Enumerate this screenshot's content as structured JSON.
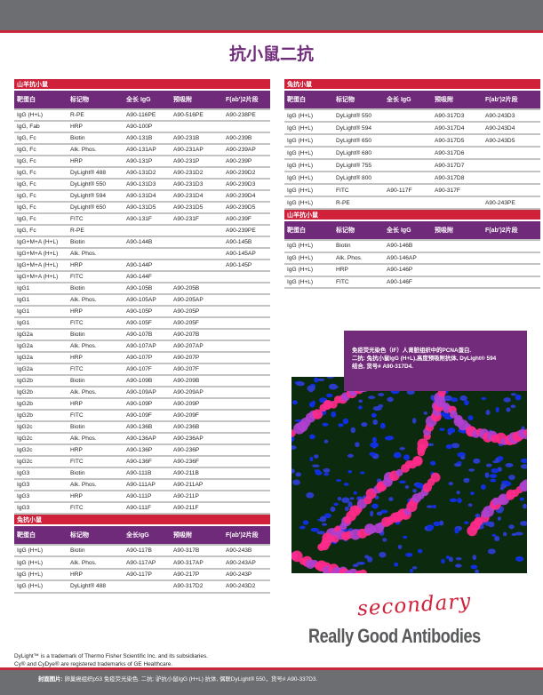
{
  "title": "抗小鼠二抗",
  "headers": [
    "靶蛋白",
    "标记物",
    "全长 IgG",
    "预吸附",
    "F(ab')2片段"
  ],
  "left": [
    {
      "section": "山羊抗小鼠",
      "rows": [
        [
          "IgG (H+L)",
          "R-PE",
          "A90-116PE",
          "A90-516PE",
          "A90-238PE"
        ],
        [
          "IgG, Fab",
          "HRP",
          "A90-100P",
          "",
          ""
        ],
        [
          "IgG, Fc",
          "Biotin",
          "A90-131B",
          "A90-231B",
          "A90-239B"
        ],
        [
          "IgG, Fc",
          "Alk. Phos.",
          "A90-131AP",
          "A90-231AP",
          "A90-239AP"
        ],
        [
          "IgG, Fc",
          "HRP",
          "A90-131P",
          "A90-231P",
          "A90-239P"
        ],
        [
          "IgG, Fc",
          "DyLight® 488",
          "A90-131D2",
          "A90-231D2",
          "A90-239D2"
        ],
        [
          "IgG, Fc",
          "DyLight® 550",
          "A90-131D3",
          "A90-231D3",
          "A90-239D3"
        ],
        [
          "IgG, Fc",
          "DyLight® 594",
          "A90-131D4",
          "A90-231D4",
          "A90-239D4"
        ],
        [
          "IgG, Fc",
          "DyLight® 650",
          "A90-131D5",
          "A90-231D5",
          "A90-239D5"
        ],
        [
          "IgG, Fc",
          "FITC",
          "A90-131F",
          "A90-231F",
          "A90-239F"
        ],
        [
          "IgG, Fc",
          "R-PE",
          "",
          "",
          "A90-239PE"
        ],
        [
          "IgG+M+A (H+L)",
          "Biotin",
          "A90-144B",
          "",
          "A90-145B"
        ],
        [
          "IgG+M+A (H+L)",
          "Alk. Phos.",
          "",
          "",
          "A90-145AP"
        ],
        [
          "IgG+M+A (H+L)",
          "HRP",
          "A90-144P",
          "",
          "A90-145P"
        ],
        [
          "IgG+M+A (H+L)",
          "FITC",
          "A90-144F",
          "",
          ""
        ],
        [
          "IgG1",
          "Biotin",
          "A90-105B",
          "A90-205B",
          ""
        ],
        [
          "IgG1",
          "Alk. Phos.",
          "A90-105AP",
          "A90-205AP",
          ""
        ],
        [
          "IgG1",
          "HRP",
          "A90-105P",
          "A90-205P",
          ""
        ],
        [
          "IgG1",
          "FITC",
          "A90-105F",
          "A90-205F",
          ""
        ],
        [
          "IgG2a",
          "Biotin",
          "A90-107B",
          "A90-207B",
          ""
        ],
        [
          "IgG2a",
          "Alk. Phos.",
          "A90-107AP",
          "A90-207AP",
          ""
        ],
        [
          "IgG2a",
          "HRP",
          "A90-107P",
          "A90-207P",
          ""
        ],
        [
          "IgG2a",
          "FITC",
          "A90-107F",
          "A90-207F",
          ""
        ],
        [
          "IgG2b",
          "Biotin",
          "A90-109B",
          "A90-209B",
          ""
        ],
        [
          "IgG2b",
          "Alk. Phos.",
          "A90-109AP",
          "A90-209AP",
          ""
        ],
        [
          "IgG2b",
          "HRP",
          "A90-109P",
          "A90-209P",
          ""
        ],
        [
          "IgG2b",
          "FITC",
          "A90-109F",
          "A90-209F",
          ""
        ],
        [
          "IgG2c",
          "Biotin",
          "A90-136B",
          "A90-236B",
          ""
        ],
        [
          "IgG2c",
          "Alk. Phos.",
          "A90-136AP",
          "A90-236AP",
          ""
        ],
        [
          "IgG2c",
          "HRP",
          "A90-136P",
          "A90-236P",
          ""
        ],
        [
          "IgG2c",
          "FITC",
          "A90-136F",
          "A90-236F",
          ""
        ],
        [
          "IgG3",
          "Biotin",
          "A90-111B",
          "A90-211B",
          ""
        ],
        [
          "IgG3",
          "Alk. Phos.",
          "A90-111AP",
          "A90-211AP",
          ""
        ],
        [
          "IgG3",
          "HRP",
          "A90-111P",
          "A90-211P",
          ""
        ],
        [
          "IgG3",
          "FITC",
          "A90-111F",
          "A90-211F",
          ""
        ]
      ]
    },
    {
      "section": "兔抗小鼠",
      "headers": [
        "靶蛋白",
        "标记物",
        "全长IgG",
        "预吸附",
        "F(ab')2片段"
      ],
      "rows": [
        [
          "IgG (H+L)",
          "Biotin",
          "A90-117B",
          "A90-317B",
          "A90-243B"
        ],
        [
          "IgG (H+L)",
          "Alk. Phos.",
          "A90-117AP",
          "A90-317AP",
          "A90-243AP"
        ],
        [
          "IgG (H+L)",
          "HRP",
          "A90-117P",
          "A90-217P",
          "A90-243P"
        ],
        [
          "IgG (H+L)",
          "DyLight® 488",
          "",
          "A90-317D2",
          "A90-243D2"
        ]
      ]
    }
  ],
  "right": [
    {
      "section": "兔抗小鼠",
      "rows": [
        [
          "IgG (H+L)",
          "DyLight® 550",
          "",
          "A90-317D3",
          "A90-243D3"
        ],
        [
          "IgG (H+L)",
          "DyLight® 594",
          "",
          "A90-317D4",
          "A90-243D4"
        ],
        [
          "IgG (H+L)",
          "DyLight® 650",
          "",
          "A90-317D5",
          "A90-243D5"
        ],
        [
          "IgG (H+L)",
          "DyLight® 680",
          "",
          "A90-317D6",
          ""
        ],
        [
          "IgG (H+L)",
          "DyLight® 755",
          "",
          "A90-317D7",
          ""
        ],
        [
          "IgG (H+L)",
          "DyLight® 800",
          "",
          "A90-317D8",
          ""
        ],
        [
          "IgG (H+L)",
          "FITC",
          "A90-117F",
          "A90-317F",
          ""
        ],
        [
          "IgG (H+L)",
          "R-PE",
          "",
          "",
          "A90-243PE"
        ]
      ]
    },
    {
      "section": "山羊抗小鼠",
      "rows": [
        [
          "IgG (H+L)",
          "Biotin",
          "A90-146B",
          "",
          ""
        ],
        [
          "IgG (H+L)",
          "Alk. Phos.",
          "A90-146AP",
          "",
          ""
        ],
        [
          "IgG (H+L)",
          "HRP",
          "A90-146P",
          "",
          ""
        ],
        [
          "IgG (H+L)",
          "FITC",
          "A90-146F",
          "",
          ""
        ]
      ]
    }
  ],
  "caption": [
    "免疫荧光染色（IF）人肾脏组织中的PCNA蛋白.",
    "二抗: 兔抗小鼠IgG (H+L),高度预吸附抗体, DyLight® 594",
    "结合, 货号# A90-317D4."
  ],
  "logo": {
    "script": "secondary",
    "main": "Really Good Antibodies",
    "accent": "#d0203a"
  },
  "trademarks": [
    "DyLight™ is a trademark of Thermo Fisher Scientific Inc. and its subsidiaries.",
    "Cy® and CyDye® are registered trademarks of GE Healthcare."
  ],
  "footer": {
    "label": "封面图片:",
    "text": " 卵巢癌组织p53 免疫荧光染色. 二抗: 驴抗小鼠IgG (H+L) 抗体, 偶联DyLight® 550，货号# A90-337D3."
  },
  "colors": {
    "purple": "#6f2a7a",
    "red": "#d0203a",
    "gray": "#6d6e71"
  }
}
